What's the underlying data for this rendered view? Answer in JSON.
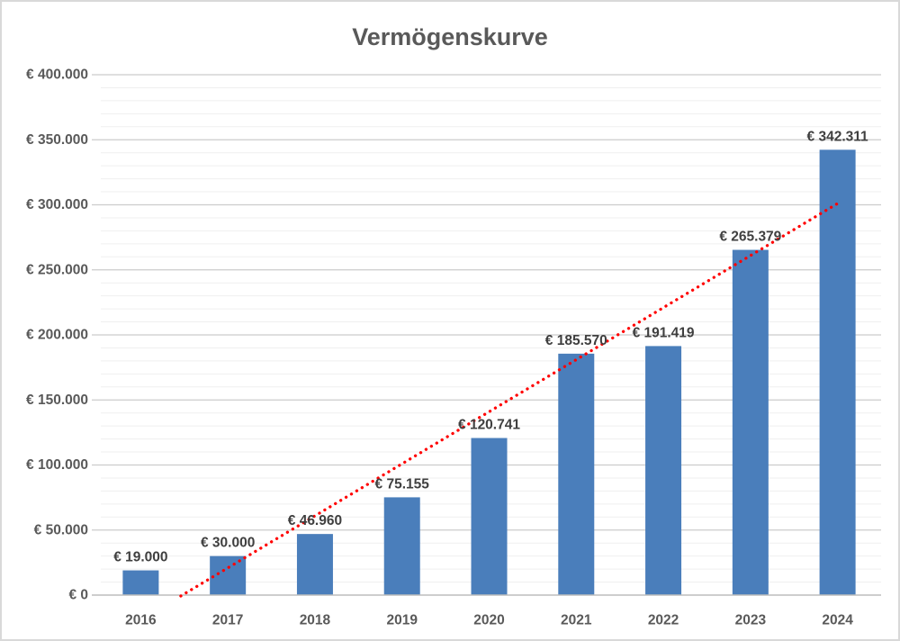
{
  "chart_data": {
    "type": "bar",
    "title": "Vermögenskurve",
    "categories": [
      "2016",
      "2017",
      "2018",
      "2019",
      "2020",
      "2021",
      "2022",
      "2023",
      "2024"
    ],
    "values": [
      19000,
      30000,
      46960,
      75155,
      120741,
      185570,
      191419,
      265379,
      342311
    ],
    "data_labels": [
      "€ 19.000",
      "€ 30.000",
      "€ 46.960",
      "€ 75.155",
      "€ 120.741",
      "€ 185.570",
      "€ 191.419",
      "€ 265.379",
      "€ 342.311"
    ],
    "xlabel": "",
    "ylabel": "",
    "ylim": [
      0,
      400000
    ],
    "y_major_step": 50000,
    "y_minor_step": 10000,
    "y_tick_labels": [
      "€ 0",
      "€ 50.000",
      "€ 100.000",
      "€ 150.000",
      "€ 200.000",
      "€ 250.000",
      "€ 300.000",
      "€ 350.000",
      "€ 400.000"
    ],
    "grid": "horizontal major+minor",
    "legend": "none",
    "trendline": {
      "type": "linear",
      "style": "dotted",
      "color": "#FF0000",
      "start": {
        "category_index": 0.46,
        "value": 0
      },
      "end": {
        "category_index": 8.0,
        "value": 301000
      }
    },
    "colors": {
      "bar": "#4A7EBB",
      "title_text": "#595959",
      "axis_text": "#595959",
      "data_label_text": "#3F3F3F",
      "major_gridline": "#CCCCCC",
      "minor_gridline": "#EFEFEF",
      "axis_line": "#BDBDBD",
      "trendline": "#FF0000",
      "frame_border": "#D9D9D9",
      "background": "#FFFFFF"
    }
  }
}
